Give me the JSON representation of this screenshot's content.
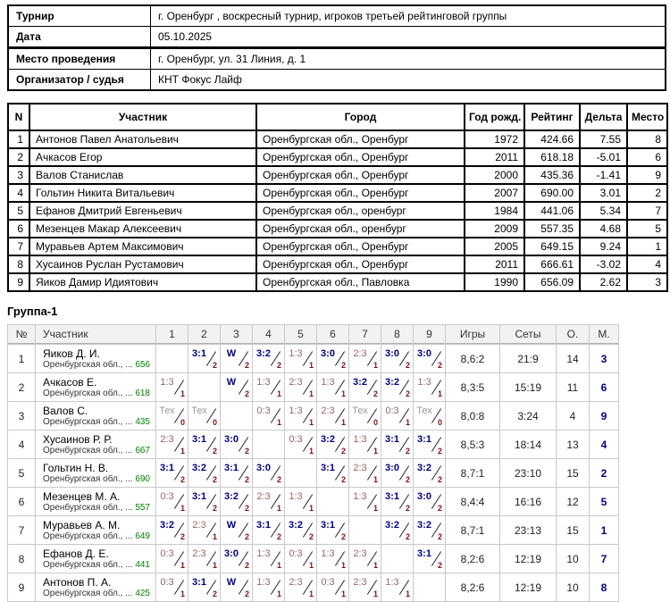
{
  "info": {
    "rows": [
      {
        "label": "Турнир",
        "value": "г. Оренбург , воскресный турнир, игроков третьей рейтинговой группы"
      },
      {
        "label": "Дата",
        "value": "05.10.2025"
      },
      {
        "label": "Место проведения",
        "value": "г. Оренбург, ул. 31 Линия, д. 1"
      },
      {
        "label": "Организатор / судья",
        "value": "КНТ Фокус Лайф"
      }
    ]
  },
  "participants": {
    "headers": [
      "N",
      "Участник",
      "Город",
      "Год рожд.",
      "Рейтинг",
      "Дельта",
      "Место"
    ],
    "rows": [
      {
        "n": "1",
        "name": "Антонов Павел Анатольевич",
        "city": "Оренбургская обл., Оренбург",
        "year": "1972",
        "rating": "424.66",
        "delta": "7.55",
        "place": "8"
      },
      {
        "n": "2",
        "name": "Ачкасов Егор",
        "city": "Оренбургская обл., Оренбург",
        "year": "2011",
        "rating": "618.18",
        "delta": "-5.01",
        "place": "6"
      },
      {
        "n": "3",
        "name": "Валов Станислав",
        "city": "Оренбургская обл., Оренбург",
        "year": "2000",
        "rating": "435.36",
        "delta": "-1.41",
        "place": "9"
      },
      {
        "n": "4",
        "name": "Гольтин Никита Витальевич",
        "city": "Оренбургская обл., Оренбург",
        "year": "2007",
        "rating": "690.00",
        "delta": "3.01",
        "place": "2"
      },
      {
        "n": "5",
        "name": "Ефанов Дмитрий Евгеньевич",
        "city": "Оренбургская обл., оренбург",
        "year": "1984",
        "rating": "441.06",
        "delta": "5.34",
        "place": "7"
      },
      {
        "n": "6",
        "name": "Мезенцев Макар Алексеевич",
        "city": "Оренбургская обл., оренбург",
        "year": "2009",
        "rating": "557.35",
        "delta": "4.68",
        "place": "5"
      },
      {
        "n": "7",
        "name": "Муравьев Артем Максимович",
        "city": "Оренбургская обл., Оренбург",
        "year": "2005",
        "rating": "649.15",
        "delta": "9.24",
        "place": "1"
      },
      {
        "n": "8",
        "name": "Хусаинов Руслан Рустамович",
        "city": "Оренбургская обл., Оренбург",
        "year": "2011",
        "rating": "666.61",
        "delta": "-3.02",
        "place": "4"
      },
      {
        "n": "9",
        "name": "Яиков Дамир Идиятович",
        "city": "Оренбургская обл., Павловка",
        "year": "1990",
        "rating": "656.09",
        "delta": "2.62",
        "place": "3"
      }
    ]
  },
  "group": {
    "title": "Группа-1",
    "headers": [
      "№",
      "Участник",
      "1",
      "2",
      "3",
      "4",
      "5",
      "6",
      "7",
      "8",
      "9",
      "Игры",
      "Сеты",
      "О.",
      "М."
    ],
    "rows": [
      {
        "n": "1",
        "name": "Яиков Д. И.",
        "region": "Оренбургская обл., ...",
        "rating": "656",
        "cells": [
          [
            "self"
          ],
          [
            "win",
            "3:1",
            "2"
          ],
          [
            "win",
            "W",
            "2"
          ],
          [
            "win",
            "3:2",
            "2"
          ],
          [
            "loss",
            "1:3",
            "1"
          ],
          [
            "win",
            "3:0",
            "2"
          ],
          [
            "loss",
            "2:3",
            "1"
          ],
          [
            "win",
            "3:0",
            "2"
          ],
          [
            "win",
            "3:0",
            "2"
          ]
        ],
        "games": "8,6:2",
        "sets": "21:9",
        "points": "14",
        "place": "3"
      },
      {
        "n": "2",
        "name": "Ачкасов Е.",
        "region": "Оренбургская обл., ...",
        "rating": "618",
        "cells": [
          [
            "loss",
            "1:3",
            "1"
          ],
          [
            "self"
          ],
          [
            "win",
            "W",
            "2"
          ],
          [
            "loss",
            "1:3",
            "1"
          ],
          [
            "loss",
            "2:3",
            "1"
          ],
          [
            "loss",
            "1:3",
            "1"
          ],
          [
            "win",
            "3:2",
            "2"
          ],
          [
            "win",
            "3:2",
            "2"
          ],
          [
            "loss",
            "1:3",
            "1"
          ]
        ],
        "games": "8,3:5",
        "sets": "15:19",
        "points": "11",
        "place": "6"
      },
      {
        "n": "3",
        "name": "Валов С.",
        "region": "Оренбургская обл., ...",
        "rating": "435",
        "cells": [
          [
            "tech",
            "Тех",
            "0"
          ],
          [
            "tech",
            "Тех",
            "0"
          ],
          [
            "self"
          ],
          [
            "loss",
            "0:3",
            "1"
          ],
          [
            "loss",
            "1:3",
            "1"
          ],
          [
            "loss",
            "2:3",
            "1"
          ],
          [
            "tech",
            "Тех",
            "0"
          ],
          [
            "loss",
            "0:3",
            "1"
          ],
          [
            "tech",
            "Тех",
            "0"
          ]
        ],
        "games": "8,0:8",
        "sets": "3:24",
        "points": "4",
        "place": "9"
      },
      {
        "n": "4",
        "name": "Хусаинов Р. Р.",
        "region": "Оренбургская обл., ...",
        "rating": "667",
        "cells": [
          [
            "loss",
            "2:3",
            "1"
          ],
          [
            "win",
            "3:1",
            "2"
          ],
          [
            "win",
            "3:0",
            "2"
          ],
          [
            "self"
          ],
          [
            "loss",
            "0:3",
            "1"
          ],
          [
            "win",
            "3:2",
            "2"
          ],
          [
            "loss",
            "1:3",
            "1"
          ],
          [
            "win",
            "3:1",
            "2"
          ],
          [
            "win",
            "3:1",
            "2"
          ]
        ],
        "games": "8,5:3",
        "sets": "18:14",
        "points": "13",
        "place": "4"
      },
      {
        "n": "5",
        "name": "Гольтин Н. В.",
        "region": "Оренбургская обл., ...",
        "rating": "690",
        "cells": [
          [
            "win",
            "3:1",
            "2"
          ],
          [
            "win",
            "3:2",
            "2"
          ],
          [
            "win",
            "3:1",
            "2"
          ],
          [
            "win",
            "3:0",
            "2"
          ],
          [
            "self"
          ],
          [
            "win",
            "3:1",
            "2"
          ],
          [
            "loss",
            "2:3",
            "1"
          ],
          [
            "win",
            "3:0",
            "2"
          ],
          [
            "win",
            "3:2",
            "2"
          ]
        ],
        "games": "8,7:1",
        "sets": "23:10",
        "points": "15",
        "place": "2"
      },
      {
        "n": "6",
        "name": "Мезенцев М. А.",
        "region": "Оренбургская обл., ...",
        "rating": "557",
        "cells": [
          [
            "loss",
            "0:3",
            "1"
          ],
          [
            "win",
            "3:1",
            "2"
          ],
          [
            "win",
            "3:2",
            "2"
          ],
          [
            "loss",
            "2:3",
            "1"
          ],
          [
            "loss",
            "1:3",
            "1"
          ],
          [
            "self"
          ],
          [
            "loss",
            "1:3",
            "1"
          ],
          [
            "win",
            "3:1",
            "2"
          ],
          [
            "win",
            "3:0",
            "2"
          ]
        ],
        "games": "8,4:4",
        "sets": "16:16",
        "points": "12",
        "place": "5"
      },
      {
        "n": "7",
        "name": "Муравьев А. М.",
        "region": "Оренбургская обл., ...",
        "rating": "649",
        "cells": [
          [
            "win",
            "3:2",
            "2"
          ],
          [
            "loss",
            "2:3",
            "1"
          ],
          [
            "win",
            "W",
            "2"
          ],
          [
            "win",
            "3:1",
            "2"
          ],
          [
            "win",
            "3:2",
            "2"
          ],
          [
            "win",
            "3:1",
            "2"
          ],
          [
            "self"
          ],
          [
            "win",
            "3:2",
            "2"
          ],
          [
            "win",
            "3:2",
            "2"
          ]
        ],
        "games": "8,7:1",
        "sets": "23:13",
        "points": "15",
        "place": "1"
      },
      {
        "n": "8",
        "name": "Ефанов Д. Е.",
        "region": "Оренбургская обл., ...",
        "rating": "441",
        "cells": [
          [
            "loss",
            "0:3",
            "1"
          ],
          [
            "loss",
            "2:3",
            "1"
          ],
          [
            "win",
            "3:0",
            "2"
          ],
          [
            "loss",
            "1:3",
            "1"
          ],
          [
            "loss",
            "0:3",
            "1"
          ],
          [
            "loss",
            "1:3",
            "1"
          ],
          [
            "loss",
            "2:3",
            "1"
          ],
          [
            "self"
          ],
          [
            "win",
            "3:1",
            "2"
          ]
        ],
        "games": "8,2:6",
        "sets": "12:19",
        "points": "10",
        "place": "7"
      },
      {
        "n": "9",
        "name": "Антонов П. А.",
        "region": "Оренбургская обл., ...",
        "rating": "425",
        "cells": [
          [
            "loss",
            "0:3",
            "1"
          ],
          [
            "win",
            "3:1",
            "2"
          ],
          [
            "win",
            "W",
            "2"
          ],
          [
            "loss",
            "1:3",
            "1"
          ],
          [
            "loss",
            "2:3",
            "1"
          ],
          [
            "loss",
            "0:3",
            "1"
          ],
          [
            "loss",
            "2:3",
            "1"
          ],
          [
            "loss",
            "1:3",
            "1"
          ],
          [
            "self"
          ]
        ],
        "games": "8,2:6",
        "sets": "12:19",
        "points": "10",
        "place": "8"
      }
    ]
  },
  "colors": {
    "win": "#000080",
    "loss": "#996666",
    "tech": "#999999",
    "points": "#7a1414",
    "rating_green": "#008000",
    "place": "#000080",
    "self_cell": "#c0c0c0"
  }
}
